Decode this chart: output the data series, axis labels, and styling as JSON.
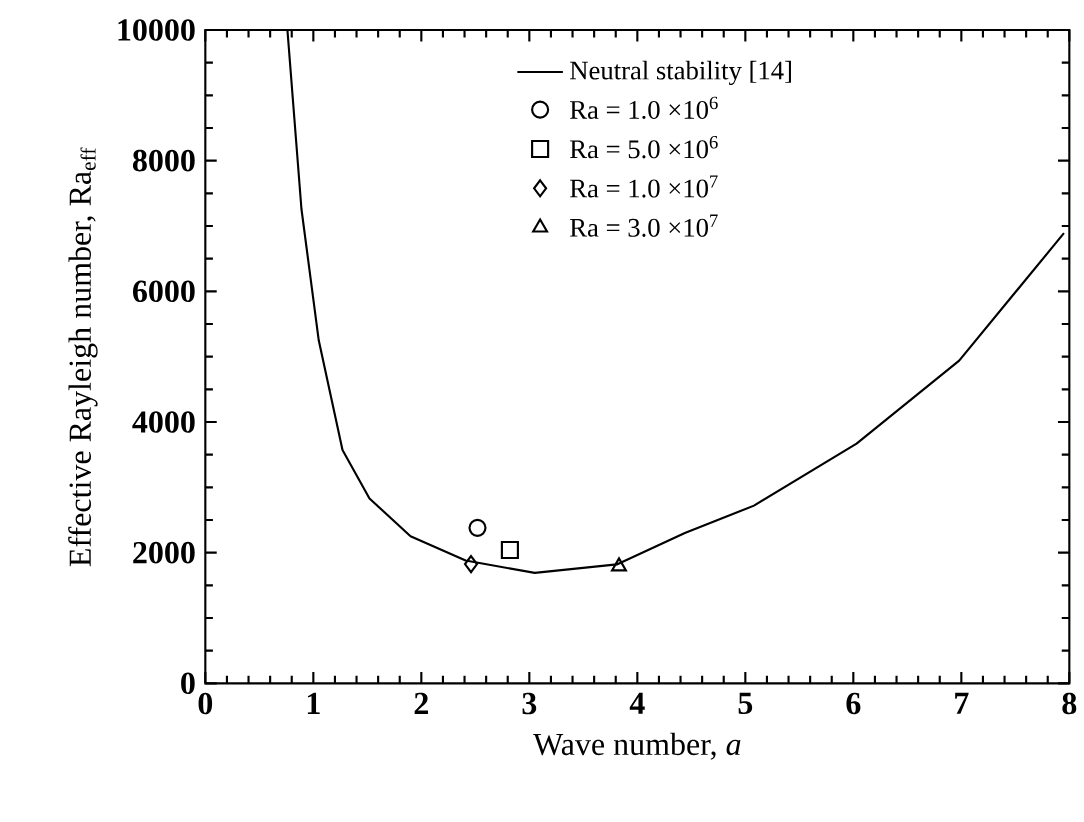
{
  "chart_data": {
    "type": "scatter",
    "xlabel": "Wave number, *a*",
    "ylabel": "Effective Rayleigh number, Ra$_{eff}$",
    "xlim": [
      0,
      8
    ],
    "ylim": [
      0,
      10000
    ],
    "xticks": [
      0,
      1,
      2,
      3,
      4,
      5,
      6,
      7,
      8
    ],
    "yticks": [
      0,
      2000,
      4000,
      6000,
      8000,
      10000
    ],
    "legend": "top right",
    "grid": false,
    "series": [
      {
        "name": "Neutral stability [14]",
        "type": "line",
        "marker": "none",
        "line_style": "solid",
        "color": "#000000",
        "x": [
          0.76,
          0.89,
          1.05,
          1.27,
          1.52,
          1.9,
          2.41,
          3.05,
          3.81,
          4.44,
          5.08,
          6.03,
          6.98,
          7.95
        ],
        "values": [
          10000,
          7260,
          5250,
          3570,
          2830,
          2250,
          1880,
          1690,
          1820,
          2300,
          2720,
          3670,
          4940,
          6890
        ]
      },
      {
        "name": "Ra = 1.0 ×10$^{6}$",
        "marker": "circle",
        "color": "#000000",
        "x": [
          2.52
        ],
        "values": [
          2380
        ]
      },
      {
        "name": "Ra = 5.0 ×10$^{6}$",
        "marker": "square",
        "color": "#000000",
        "x": [
          2.82
        ],
        "values": [
          2040
        ]
      },
      {
        "name": "Ra = 1.0 ×10$^{7}$",
        "marker": "diamond",
        "color": "#000000",
        "x": [
          2.46
        ],
        "values": [
          1825
        ]
      },
      {
        "name": "Ra = 3.0 ×10$^{7}$",
        "marker": "triangle",
        "color": "#000000",
        "x": [
          3.83
        ],
        "values": [
          1790
        ]
      }
    ]
  }
}
